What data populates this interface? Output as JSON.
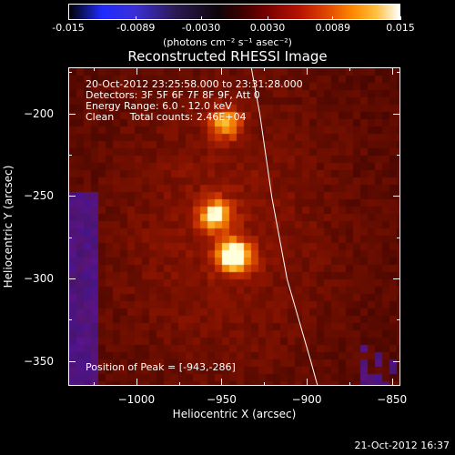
{
  "colorbar": {
    "ticks": [
      "-0.015",
      "-0.0089",
      "-0.0030",
      "0.0030",
      "0.0089",
      "0.015"
    ],
    "tick_values": [
      -0.015,
      -0.0089,
      -0.003,
      0.003,
      0.0089,
      0.015
    ],
    "unit_label": "(photons cm⁻² s⁻¹ asec⁻²)"
  },
  "chart_data": {
    "type": "heatmap",
    "title": "Reconstructed RHESSI Image",
    "xlabel": "Heliocentric X (arcsec)",
    "ylabel": "Heliocentric Y (arcsec)",
    "xlim": [
      -1040,
      -845
    ],
    "ylim": [
      -365,
      -172
    ],
    "x_ticks": [
      -1000,
      -950,
      -900,
      -850
    ],
    "x_tick_labels": [
      "−1000",
      "−950",
      "−900",
      "−850"
    ],
    "y_ticks": [
      -200,
      -250,
      -300,
      -350
    ],
    "y_tick_labels": [
      "−200",
      "−250",
      "−300",
      "−350"
    ],
    "sources": [
      {
        "x": -943,
        "y": -286,
        "intensity": 0.015
      },
      {
        "x": -954,
        "y": -261,
        "intensity": 0.0105
      },
      {
        "x": -948,
        "y": -205,
        "intensity": 0.0095
      }
    ],
    "limb_curve": [
      [
        -933,
        -172
      ],
      [
        -928,
        -200
      ],
      [
        -921,
        -250
      ],
      [
        -912,
        -300
      ],
      [
        -898,
        -350
      ],
      [
        -894,
        -365
      ]
    ],
    "info_lines": [
      "20-Oct-2012 23:25:58.000 to 23:31:28.000",
      "Detectors: 3F 5F 6F 7F 8F 9F, Att 0",
      "Energy Range: 6.0 - 12.0 keV",
      "Clean     Total counts: 2.46E+04"
    ],
    "peak_label": "Position of Peak = [-943,-286]"
  },
  "footer": {
    "timestamp": "21-Oct-2012 16:37"
  }
}
